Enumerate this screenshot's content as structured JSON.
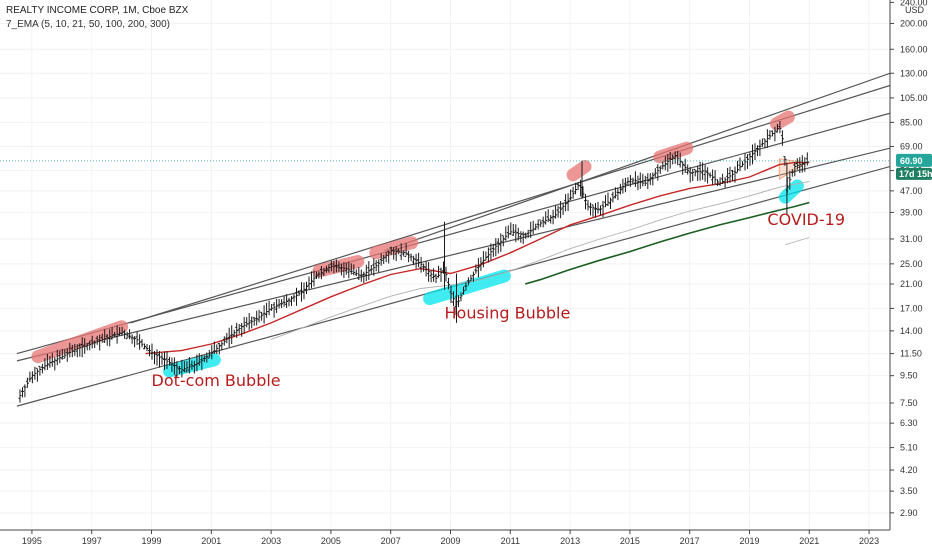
{
  "header": {
    "title": "REALTY INCOME CORP, 1M, Cboe BZX",
    "indicator": "7_EMA (5, 10, 21, 50, 100, 200, 300)"
  },
  "colors": {
    "price_bar": "#1a1a1a",
    "ema_red": "#c62828",
    "ema_green": "#1b5e20",
    "ema_gray": "#b0b0b0",
    "channel": "#555555",
    "top_marker": "#e57373",
    "bottom_marker": "#00e5ee",
    "annotation": "#b71c1c",
    "price_tag": "#26a69a",
    "price_tag_dark": "#1e7f62",
    "wedge": "#f4a582"
  },
  "chart_data": {
    "type": "line",
    "title": "REALTY INCOME CORP, 1M, Cboe BZX",
    "xlabel": "",
    "ylabel": "USD",
    "y_scale": "log",
    "ylim": [
      2.5,
      245
    ],
    "xlim": [
      1994.2,
      2023.7
    ],
    "x_ticks": [
      "1995",
      "1997",
      "1999",
      "2001",
      "2003",
      "2005",
      "2007",
      "2009",
      "2011",
      "2013",
      "2015",
      "2017",
      "2019",
      "2021",
      "2023"
    ],
    "y_ticks": [
      "240.00",
      "200.00",
      "160.00",
      "130.00",
      "105.00",
      "85.00",
      "69.00",
      "56.00",
      "47.00",
      "39.00",
      "31.00",
      "25.00",
      "21.00",
      "17.00",
      "14.00",
      "11.50",
      "9.50",
      "7.50",
      "6.30",
      "5.10",
      "4.20",
      "3.50",
      "2.90"
    ],
    "unit_label": "USD",
    "last_price": "60.90",
    "countdown": "17d 15h",
    "series": [
      {
        "name": "REALTY INCOME CORP",
        "x": [
          1994.6,
          1995.0,
          1995.5,
          1996.0,
          1996.5,
          1997.0,
          1997.5,
          1998.0,
          1998.5,
          1999.0,
          1999.5,
          2000.0,
          2000.5,
          2001.0,
          2001.5,
          2002.0,
          2002.5,
          2003.0,
          2003.5,
          2004.0,
          2004.5,
          2005.0,
          2005.5,
          2006.0,
          2006.5,
          2007.0,
          2007.5,
          2008.0,
          2008.5,
          2008.8,
          2009.0,
          2009.2,
          2009.5,
          2010.0,
          2010.5,
          2011.0,
          2011.5,
          2012.0,
          2012.5,
          2013.0,
          2013.3,
          2013.6,
          2014.0,
          2014.5,
          2015.0,
          2015.5,
          2016.0,
          2016.5,
          2017.0,
          2017.5,
          2018.0,
          2018.5,
          2019.0,
          2019.5,
          2020.0,
          2020.15,
          2020.25,
          2020.5,
          2021.0
        ],
        "values": [
          8.0,
          9.5,
          10.5,
          11.2,
          12.0,
          12.5,
          13.2,
          13.8,
          13.0,
          11.6,
          10.8,
          10.0,
          10.5,
          11.5,
          13.0,
          14.5,
          15.5,
          17.0,
          18.0,
          19.5,
          22.5,
          24.5,
          24.0,
          22.5,
          24.5,
          28.0,
          27.5,
          25.0,
          22.0,
          24.0,
          19.5,
          17.5,
          20.5,
          25.0,
          29.0,
          33.0,
          32.0,
          35.5,
          38.0,
          44.0,
          50.0,
          41.0,
          40.0,
          45.0,
          52.0,
          50.0,
          57.0,
          64.0,
          55.0,
          56.0,
          50.0,
          55.0,
          63.0,
          72.0,
          82.0,
          70.0,
          48.0,
          58.0,
          60.9
        ]
      },
      {
        "name": "EMA 50",
        "x": [
          1998.8,
          2000.0,
          2001.0,
          2002.0,
          2003.0,
          2004.0,
          2005.0,
          2006.0,
          2007.0,
          2008.0,
          2009.0,
          2010.0,
          2011.0,
          2012.0,
          2013.0,
          2014.0,
          2015.0,
          2016.0,
          2017.0,
          2018.0,
          2019.0,
          2020.0,
          2020.5,
          2021.0
        ],
        "values": [
          11.5,
          11.8,
          12.5,
          13.6,
          15.0,
          16.8,
          18.8,
          20.8,
          22.8,
          24.0,
          23.0,
          24.8,
          27.5,
          31.0,
          35.0,
          38.0,
          41.5,
          45.0,
          48.0,
          50.0,
          53.0,
          59.0,
          60.0,
          60.0
        ]
      },
      {
        "name": "EMA 100",
        "x": [
          2003.0,
          2004.0,
          2005.0,
          2006.0,
          2007.0,
          2008.0,
          2009.0,
          2010.0,
          2011.0,
          2012.0,
          2013.0,
          2014.0,
          2015.0,
          2016.0,
          2017.0,
          2018.0,
          2019.0,
          2020.0,
          2021.0
        ],
        "values": [
          13.0,
          14.3,
          15.8,
          17.3,
          18.9,
          20.2,
          20.8,
          21.8,
          23.5,
          25.8,
          28.5,
          31.0,
          33.5,
          36.5,
          39.5,
          42.0,
          45.0,
          48.5,
          51.0
        ]
      },
      {
        "name": "EMA 200",
        "x": [
          2011.5,
          2012.0,
          2013.0,
          2014.0,
          2015.0,
          2016.0,
          2017.0,
          2018.0,
          2019.0,
          2020.0,
          2020.5,
          2021.0
        ],
        "values": [
          21.0,
          21.8,
          23.8,
          25.8,
          27.8,
          30.2,
          32.6,
          35.0,
          37.3,
          39.8,
          41.0,
          42.5
        ]
      },
      {
        "name": "EMA 300",
        "x": [
          2020.2,
          2020.5,
          2021.0
        ],
        "values": [
          29.5,
          30.2,
          31.4
        ]
      }
    ],
    "channel_lines": [
      {
        "x": [
          1994.5,
          2023.7
        ],
        "values": [
          7.3,
          58
        ]
      },
      {
        "x": [
          1994.5,
          2023.7
        ],
        "values": [
          10.8,
          68
        ]
      },
      {
        "x": [
          1994.5,
          2023.7
        ],
        "values": [
          11.5,
          92
        ]
      },
      {
        "x": [
          1998.3,
          2023.7
        ],
        "values": [
          15.0,
          117
        ]
      },
      {
        "x": [
          2006.8,
          2023.7
        ],
        "values": [
          28.0,
          130
        ]
      }
    ],
    "annotations": [
      {
        "text": "Dot-com Bubble",
        "x": 1999.0,
        "y": 8.7
      },
      {
        "text": "Housing Bubble",
        "x": 2008.8,
        "y": 15.6
      },
      {
        "text": "COVID-19",
        "x": 2019.6,
        "y": 35.0
      }
    ],
    "top_markers": [
      {
        "x1": 1995.2,
        "y1": 11.2,
        "x2": 1998.0,
        "y2": 14.5
      },
      {
        "x1": 2004.6,
        "y1": 23.5,
        "x2": 2005.9,
        "y2": 25.5
      },
      {
        "x1": 2006.5,
        "y1": 27.5,
        "x2": 2007.7,
        "y2": 30.0
      },
      {
        "x1": 2013.1,
        "y1": 54.0,
        "x2": 2013.5,
        "y2": 58.0
      },
      {
        "x1": 2016.0,
        "y1": 63.0,
        "x2": 2016.9,
        "y2": 68.0
      },
      {
        "x1": 2019.9,
        "y1": 84.0,
        "x2": 2020.3,
        "y2": 89.0
      }
    ],
    "bottom_markers": [
      {
        "x1": 1999.6,
        "y1": 9.9,
        "x2": 2001.1,
        "y2": 10.9
      },
      {
        "x1": 2008.3,
        "y1": 18.5,
        "x2": 2010.8,
        "y2": 22.5
      },
      {
        "x1": 2020.2,
        "y1": 44.5,
        "x2": 2020.6,
        "y2": 49.0
      }
    ]
  }
}
